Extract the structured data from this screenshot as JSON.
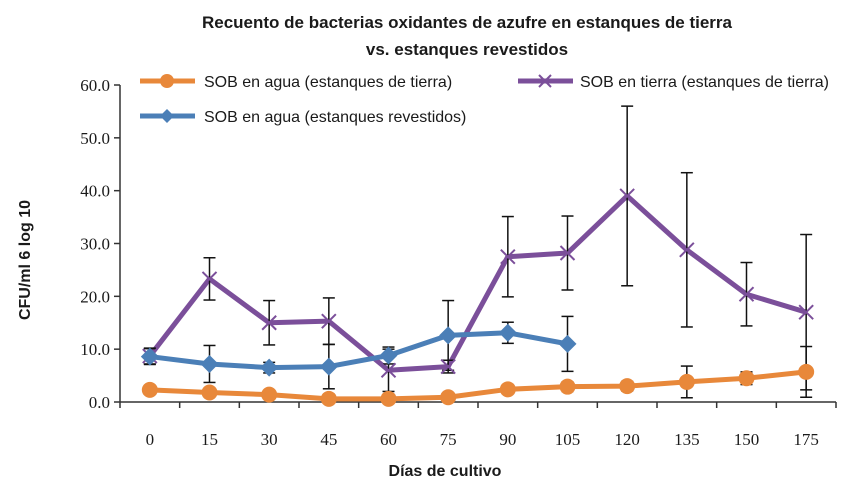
{
  "chart_data": {
    "type": "line",
    "title": [
      "Recuento de bacterias oxidantes de azufre en estanques de tierra",
      "vs. estanques revestidos"
    ],
    "xlabel": "Días de cultivo",
    "ylabel": "CFU/ml 6 log 10",
    "ylim": [
      0,
      60
    ],
    "yticks": [
      "0.0",
      "10.0",
      "20.0",
      "30.0",
      "40.0",
      "50.0",
      "60.0"
    ],
    "categories": [
      "0",
      "15",
      "30",
      "45",
      "60",
      "75",
      "90",
      "105",
      "120",
      "135",
      "150",
      "175"
    ],
    "legend_position": "top",
    "series": [
      {
        "name": "SOB en agua (estanques de tierra)",
        "color": "#e8883a",
        "marker": "circle",
        "values": [
          2.3,
          1.8,
          1.4,
          0.6,
          0.6,
          0.9,
          2.4,
          2.9,
          3.0,
          3.8,
          4.5,
          5.7
        ],
        "err": [
          0.8,
          0.8,
          0.7,
          0.5,
          0.5,
          0.6,
          0.8,
          0.9,
          0.9,
          3.0,
          1.2,
          4.8
        ]
      },
      {
        "name": "SOB en tierra (estanques de tierra)",
        "color": "#7b4f9a",
        "marker": "x",
        "values": [
          8.7,
          23.3,
          15.0,
          15.3,
          6.0,
          6.7,
          27.5,
          28.2,
          39.0,
          28.8,
          20.4,
          17.0
        ],
        "err": [
          1.5,
          4.0,
          4.2,
          4.4,
          4.0,
          1.2,
          7.6,
          7.0,
          17.0,
          14.6,
          6.0,
          14.7
        ]
      },
      {
        "name": "SOB en agua (estanques revestidos)",
        "color": "#4b7fb7",
        "marker": "diamond",
        "values": [
          8.6,
          7.2,
          6.5,
          6.7,
          8.8,
          12.6,
          13.1,
          11.0,
          null,
          null,
          null,
          null
        ],
        "err": [
          1.5,
          3.5,
          1.0,
          4.2,
          1.6,
          6.6,
          2.0,
          5.2,
          null,
          null,
          null,
          null
        ]
      }
    ]
  }
}
